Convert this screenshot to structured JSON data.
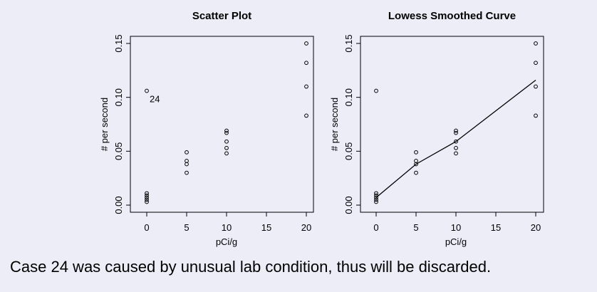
{
  "chart_data": [
    {
      "type": "scatter",
      "title": "Scatter Plot",
      "xlabel": "pCi/g",
      "ylabel": "# per second",
      "xlim": [
        0,
        20
      ],
      "ylim": [
        0,
        0.15
      ],
      "xticks": [
        "0",
        "5",
        "10",
        "15",
        "20"
      ],
      "yticks": [
        "0.00",
        "0.05",
        "0.10",
        "0.15"
      ],
      "grid": false,
      "points": [
        {
          "x": 0,
          "y": 0.106
        },
        {
          "x": 0,
          "y": 0.011
        },
        {
          "x": 0,
          "y": 0.009
        },
        {
          "x": 0,
          "y": 0.007
        },
        {
          "x": 0,
          "y": 0.005
        },
        {
          "x": 0,
          "y": 0.003
        },
        {
          "x": 5,
          "y": 0.049
        },
        {
          "x": 5,
          "y": 0.041
        },
        {
          "x": 5,
          "y": 0.038
        },
        {
          "x": 5,
          "y": 0.03
        },
        {
          "x": 10,
          "y": 0.069
        },
        {
          "x": 10,
          "y": 0.067
        },
        {
          "x": 10,
          "y": 0.059
        },
        {
          "x": 10,
          "y": 0.053
        },
        {
          "x": 10,
          "y": 0.048
        },
        {
          "x": 20,
          "y": 0.15
        },
        {
          "x": 20,
          "y": 0.132
        },
        {
          "x": 20,
          "y": 0.11
        },
        {
          "x": 20,
          "y": 0.083
        }
      ],
      "annotation": {
        "text": "24",
        "x": 0,
        "y": 0.106
      }
    },
    {
      "type": "scatter",
      "title": "Lowess Smoothed Curve",
      "xlabel": "pCi/g",
      "ylabel": "# per second",
      "xlim": [
        0,
        20
      ],
      "ylim": [
        0,
        0.15
      ],
      "xticks": [
        "0",
        "5",
        "10",
        "15",
        "20"
      ],
      "yticks": [
        "0.00",
        "0.05",
        "0.10",
        "0.15"
      ],
      "grid": false,
      "points": [
        {
          "x": 0,
          "y": 0.106
        },
        {
          "x": 0,
          "y": 0.011
        },
        {
          "x": 0,
          "y": 0.009
        },
        {
          "x": 0,
          "y": 0.007
        },
        {
          "x": 0,
          "y": 0.005
        },
        {
          "x": 0,
          "y": 0.003
        },
        {
          "x": 5,
          "y": 0.049
        },
        {
          "x": 5,
          "y": 0.041
        },
        {
          "x": 5,
          "y": 0.038
        },
        {
          "x": 5,
          "y": 0.03
        },
        {
          "x": 10,
          "y": 0.069
        },
        {
          "x": 10,
          "y": 0.067
        },
        {
          "x": 10,
          "y": 0.059
        },
        {
          "x": 10,
          "y": 0.053
        },
        {
          "x": 10,
          "y": 0.048
        },
        {
          "x": 20,
          "y": 0.15
        },
        {
          "x": 20,
          "y": 0.132
        },
        {
          "x": 20,
          "y": 0.11
        },
        {
          "x": 20,
          "y": 0.083
        }
      ],
      "curve": [
        {
          "x": 0,
          "y": 0.007
        },
        {
          "x": 5,
          "y": 0.038
        },
        {
          "x": 10,
          "y": 0.059
        },
        {
          "x": 20,
          "y": 0.116
        }
      ]
    }
  ],
  "caption": "Case 24 was caused by unusual lab condition, thus will be discarded."
}
